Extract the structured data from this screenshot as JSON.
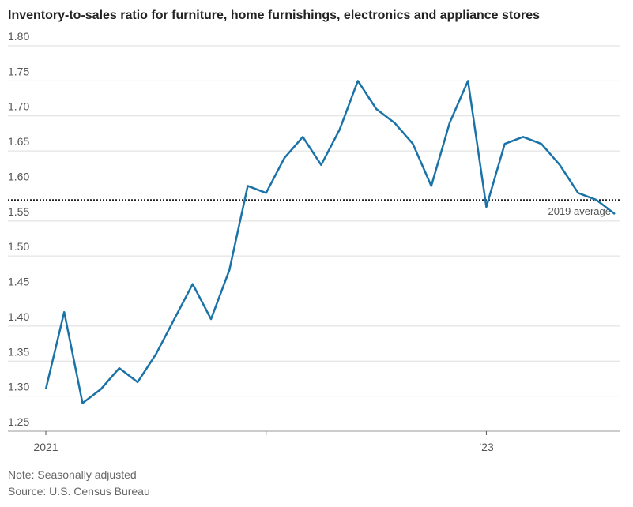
{
  "chart_data": {
    "type": "line",
    "title": "Inventory-to-sales ratio for furniture, home furnishings, electronics and appliance stores",
    "categories": [
      "2021",
      null,
      null,
      null,
      null,
      null,
      null,
      null,
      null,
      null,
      null,
      null,
      null,
      null,
      null,
      null,
      null,
      null,
      null,
      null,
      null,
      null,
      null,
      null,
      "’23",
      null,
      null,
      null,
      null,
      null,
      null,
      null
    ],
    "series": [
      {
        "name": "Inventory-to-sales ratio",
        "color": "#1a73a8",
        "values": [
          1.31,
          1.42,
          1.29,
          1.31,
          1.34,
          1.32,
          1.36,
          1.41,
          1.46,
          1.41,
          1.48,
          1.6,
          1.59,
          1.64,
          1.67,
          1.63,
          1.68,
          1.75,
          1.71,
          1.69,
          1.66,
          1.6,
          1.69,
          1.75,
          1.57,
          1.66,
          1.67,
          1.66,
          1.63,
          1.59,
          1.58,
          1.56
        ]
      }
    ],
    "reference_line": {
      "value": 1.58,
      "label": "2019 average"
    },
    "ylim": [
      1.25,
      1.8
    ],
    "yticks": [
      {
        "value": 1.25,
        "label": "1.25"
      },
      {
        "value": 1.3,
        "label": "1.30"
      },
      {
        "value": 1.35,
        "label": "1.35"
      },
      {
        "value": 1.4,
        "label": "1.40"
      },
      {
        "value": 1.45,
        "label": "1.45"
      },
      {
        "value": 1.5,
        "label": "1.50"
      },
      {
        "value": 1.55,
        "label": "1.55"
      },
      {
        "value": 1.6,
        "label": "1.60"
      },
      {
        "value": 1.65,
        "label": "1.65"
      },
      {
        "value": 1.7,
        "label": "1.70"
      },
      {
        "value": 1.75,
        "label": "1.75"
      },
      {
        "value": 1.8,
        "label": "1.80"
      }
    ],
    "grid": true,
    "notes": [
      "Note: Seasonally adjusted",
      "Source: U.S. Census Bureau"
    ]
  }
}
